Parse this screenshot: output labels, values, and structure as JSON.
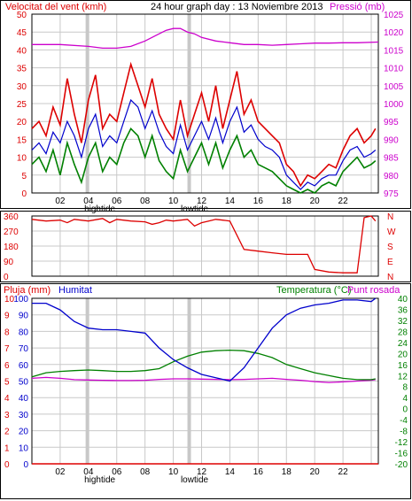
{
  "title": "24 hour graph day : 13 Noviembre 2013",
  "colors": {
    "wind": "#dd0000",
    "gust": "#dd0000",
    "avg": "#0000cc",
    "wind_green": "#008000",
    "pressure": "#cc00cc",
    "humidity": "#0000cc",
    "temp": "#008000",
    "dew": "#cc00cc",
    "rain": "#dd0000",
    "direction": "#dd0000",
    "grid": "#c8c8c8",
    "highlight": "#c8c8c8"
  },
  "chart_data": [
    {
      "type": "line",
      "name": "wind-pressure",
      "title": "24 hour graph day : 13 Noviembre 2013",
      "left_label": "Velocitat del vent (kmh)",
      "right_label": "Pressió (mb)",
      "y_left_ticks": [
        "0",
        "5",
        "10",
        "15",
        "20",
        "25",
        "30",
        "35",
        "40",
        "45",
        "50"
      ],
      "y_right_ticks": [
        "975",
        "980",
        "985",
        "990",
        "995",
        "1000",
        "1005",
        "1010",
        "1015",
        "1020",
        "1025"
      ],
      "ylim_left": [
        0,
        50
      ],
      "ylim_right": [
        975,
        1025
      ],
      "x_ticks": [
        "02",
        "04",
        "06",
        "08",
        "10",
        "12",
        "14",
        "16",
        "18",
        "20",
        "22",
        ""
      ],
      "x_sub_labels": [
        {
          "text": "hightide",
          "at": 4.8
        },
        {
          "text": "lowtide",
          "at": 11.5
        }
      ],
      "xlim": [
        0,
        24.5
      ],
      "highlight_hours": [
        3.8,
        11.0
      ],
      "pressure": {
        "x": [
          0,
          2,
          4,
          5,
          6,
          7,
          8,
          9,
          9.5,
          10,
          10.5,
          11,
          11.5,
          12,
          13,
          14,
          15,
          16,
          17,
          18,
          19,
          20,
          21,
          22,
          23,
          24.5
        ],
        "y": [
          1016.5,
          1016.5,
          1016,
          1015.5,
          1015.5,
          1016,
          1017.5,
          1019.5,
          1020.5,
          1021,
          1021,
          1020,
          1019.5,
          1018.5,
          1017.5,
          1017,
          1016.5,
          1016.5,
          1016.3,
          1016.5,
          1016.7,
          1016.9,
          1016.9,
          1017,
          1017,
          1017.2
        ]
      },
      "gust": {
        "x": [
          0,
          0.5,
          1,
          1.5,
          2,
          2.5,
          3,
          3.5,
          4,
          4.5,
          5,
          5.5,
          6,
          6.5,
          7,
          7.5,
          8,
          8.5,
          9,
          9.5,
          10,
          10.5,
          11,
          11.5,
          12,
          12.5,
          13,
          13.5,
          14,
          14.5,
          15,
          15.5,
          16,
          16.5,
          17,
          17.5,
          18,
          18.5,
          19,
          19.5,
          20,
          20.5,
          21,
          21.5,
          22,
          22.5,
          23,
          23.5,
          24,
          24.3
        ],
        "y": [
          18,
          20,
          16,
          24,
          19,
          32,
          22,
          14,
          26,
          33,
          18,
          22,
          20,
          28,
          36,
          30,
          24,
          32,
          22,
          18,
          15,
          26,
          16,
          22,
          28,
          20,
          30,
          18,
          26,
          34,
          22,
          26,
          20,
          18,
          16,
          14,
          8,
          6,
          2,
          5,
          4,
          6,
          8,
          7,
          12,
          16,
          18,
          14,
          16,
          18
        ]
      },
      "avg": {
        "x": [
          0,
          0.5,
          1,
          1.5,
          2,
          2.5,
          3,
          3.5,
          4,
          4.5,
          5,
          5.5,
          6,
          6.5,
          7,
          7.5,
          8,
          8.5,
          9,
          9.5,
          10,
          10.5,
          11,
          11.5,
          12,
          12.5,
          13,
          13.5,
          14,
          14.5,
          15,
          15.5,
          16,
          16.5,
          17,
          17.5,
          18,
          18.5,
          19,
          19.5,
          20,
          20.5,
          21,
          21.5,
          22,
          22.5,
          23,
          23.5,
          24,
          24.3
        ],
        "y": [
          12,
          14,
          11,
          17,
          14,
          20,
          16,
          10,
          18,
          22,
          13,
          16,
          14,
          20,
          26,
          24,
          18,
          23,
          17,
          13,
          11,
          19,
          12,
          16,
          20,
          15,
          21,
          14,
          20,
          24,
          17,
          19,
          15,
          13,
          12,
          10,
          5,
          3,
          1,
          3,
          2,
          4,
          5,
          5,
          9,
          12,
          13,
          10,
          11,
          12
        ]
      },
      "wind": {
        "x": [
          0,
          0.5,
          1,
          1.5,
          2,
          2.5,
          3,
          3.5,
          4,
          4.5,
          5,
          5.5,
          6,
          6.5,
          7,
          7.5,
          8,
          8.5,
          9,
          9.5,
          10,
          10.5,
          11,
          11.5,
          12,
          12.5,
          13,
          13.5,
          14,
          14.5,
          15,
          15.5,
          16,
          16.5,
          17,
          17.5,
          18,
          18.5,
          19,
          19.5,
          20,
          20.5,
          21,
          21.5,
          22,
          22.5,
          23,
          23.5,
          24,
          24.3
        ],
        "y": [
          8,
          10,
          6,
          12,
          5,
          14,
          8,
          3,
          10,
          14,
          6,
          10,
          8,
          14,
          18,
          16,
          10,
          16,
          9,
          6,
          4,
          12,
          6,
          10,
          14,
          8,
          14,
          7,
          12,
          16,
          10,
          12,
          8,
          7,
          6,
          4,
          2,
          1,
          0,
          1,
          0,
          2,
          3,
          2,
          6,
          8,
          10,
          7,
          8,
          9
        ]
      }
    },
    {
      "type": "line",
      "name": "wind-direction",
      "y_left_ticks": [
        "0",
        "90",
        "180",
        "270",
        "360"
      ],
      "ylim": [
        0,
        360
      ],
      "y_right_ticks": [
        "N",
        "E",
        "S",
        "W",
        "N"
      ],
      "direction": {
        "x": [
          0,
          1,
          2,
          2.5,
          3,
          4,
          5,
          5.5,
          6,
          7,
          8,
          8.5,
          9,
          9.5,
          10,
          11,
          11.5,
          12,
          12.5,
          13,
          13.5,
          14,
          15,
          16,
          17,
          18,
          18.5,
          19,
          19.5,
          20,
          21,
          22,
          23,
          23.5,
          24,
          24.3
        ],
        "y": [
          340,
          330,
          335,
          320,
          340,
          330,
          345,
          320,
          340,
          330,
          325,
          310,
          320,
          335,
          330,
          340,
          300,
          320,
          330,
          340,
          335,
          330,
          160,
          150,
          140,
          130,
          130,
          130,
          130,
          40,
          25,
          20,
          20,
          350,
          360,
          330
        ]
      }
    },
    {
      "type": "line",
      "name": "humidity-temperature",
      "left_label": "Pluja (mm)",
      "hum_label": "Humitat",
      "right_label": "Temperatura (°C)",
      "dew_label": "Punt rosada",
      "y_rain_ticks": [
        "0",
        "1",
        "2",
        "3",
        "4",
        "5",
        "6",
        "7",
        "8",
        "9",
        "10"
      ],
      "y_hum_ticks": [
        "0",
        "10",
        "20",
        "30",
        "40",
        "50",
        "60",
        "70",
        "80",
        "90",
        "100"
      ],
      "y_right_ticks": [
        "-20",
        "-16",
        "-12",
        "-8",
        "-4",
        "0",
        "4",
        "8",
        "12",
        "16",
        "20",
        "24",
        "28",
        "32",
        "36",
        "40"
      ],
      "humidity": {
        "x": [
          0,
          1,
          2,
          3,
          4,
          5,
          6,
          7,
          8,
          9,
          10,
          11,
          12,
          13,
          14,
          15,
          16,
          17,
          18,
          19,
          20,
          21,
          22,
          23,
          24,
          24.3
        ],
        "y": [
          97,
          97,
          93,
          86,
          82,
          81,
          81,
          80,
          79,
          70,
          63,
          58,
          54,
          52,
          50,
          58,
          70,
          82,
          90,
          94,
          96,
          97,
          99,
          99,
          98,
          100
        ]
      },
      "temperature": {
        "x": [
          0,
          1,
          2,
          3,
          4,
          5,
          6,
          7,
          8,
          9,
          10,
          11,
          12,
          13,
          14,
          15,
          16,
          17,
          18,
          19,
          20,
          21,
          22,
          23,
          24,
          24.3
        ],
        "y": [
          11.5,
          13,
          13.5,
          13.8,
          14,
          13.8,
          13.5,
          13.5,
          13.8,
          14.5,
          17,
          19,
          20.5,
          21,
          21.2,
          21,
          20,
          18.5,
          16,
          14.5,
          13,
          12,
          11,
          10.5,
          10.5,
          10.8
        ]
      },
      "dew": {
        "x": [
          0,
          1,
          2,
          3,
          4,
          5,
          6,
          7,
          8,
          9,
          10,
          11,
          12,
          13,
          14,
          15,
          16,
          17,
          18,
          19,
          20,
          21,
          22,
          23,
          24,
          24.3
        ],
        "y": [
          11,
          11.3,
          11,
          10.5,
          10.4,
          10.3,
          10.2,
          10.2,
          10.3,
          10.6,
          10.8,
          10.8,
          10.7,
          10.6,
          10.5,
          10.6,
          10.8,
          11,
          10.6,
          10.3,
          9.8,
          9.5,
          9.7,
          10,
          10.3,
          10.5
        ]
      },
      "rain": {
        "x": [
          0,
          24.5
        ],
        "y": [
          0,
          0
        ]
      },
      "x_ticks": [
        "02",
        "04",
        "06",
        "08",
        "10",
        "12",
        "14",
        "16",
        "18",
        "20",
        "22",
        ""
      ],
      "x_sub_labels": [
        {
          "text": "hightide",
          "at": 4.8
        },
        {
          "text": "lowtide",
          "at": 11.5
        }
      ]
    }
  ]
}
